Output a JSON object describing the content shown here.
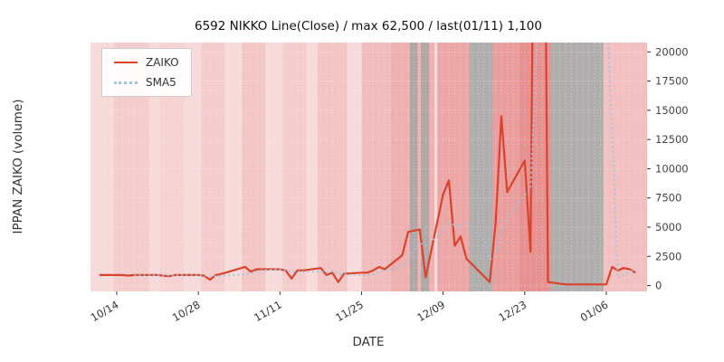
{
  "title": "6592 NIKKO Line(Close) / max 62,500 / last(01/11) 1,100",
  "xlabel": "DATE",
  "ylabel": "IPPAN ZAIKO (volume)",
  "legend": {
    "zaiko": "ZAIKO",
    "sma5": "SMA5"
  },
  "colors": {
    "zaiko_line": "#d9432d",
    "sma5_line": "#9fc5de",
    "plot_background": "#f7dada",
    "halt_band": "#a6a6a6",
    "gridline": "#ffffff",
    "tick_text": "#444444",
    "axis_text": "#333333"
  },
  "chart_data": {
    "type": "line",
    "title": "6592 NIKKO Line(Close) / max 62,500 / last(01/11) 1,100",
    "xlabel": "DATE",
    "ylabel": "IPPAN ZAIKO (volume)",
    "legend_position": "upper left",
    "grid": true,
    "xlim": [
      -1.5,
      94
    ],
    "ylim": [
      -500,
      20800
    ],
    "yticks": [
      0,
      2500,
      5000,
      7500,
      10000,
      12500,
      15000,
      17500,
      20000
    ],
    "xticks": [
      {
        "day": 3,
        "label": "10/14"
      },
      {
        "day": 17,
        "label": "10/28"
      },
      {
        "day": 31,
        "label": "11/11"
      },
      {
        "day": 45,
        "label": "11/25"
      },
      {
        "day": 59,
        "label": "12/09"
      },
      {
        "day": 73,
        "label": "12/23"
      },
      {
        "day": 87,
        "label": "01/06"
      }
    ],
    "max_value": 62500,
    "last_value": 1100,
    "last_date": "01/11",
    "series": [
      {
        "name": "ZAIKO",
        "style": "solid",
        "points": [
          [
            "10/11",
            0,
            900
          ],
          [
            "10/14",
            3,
            900
          ],
          [
            "10/15",
            4,
            900
          ],
          [
            "10/16",
            5,
            850
          ],
          [
            "10/17",
            6,
            900
          ],
          [
            "10/18",
            7,
            900
          ],
          [
            "10/21",
            10,
            900
          ],
          [
            "10/22",
            11,
            850
          ],
          [
            "10/23",
            12,
            800
          ],
          [
            "10/24",
            13,
            900
          ],
          [
            "10/25",
            14,
            900
          ],
          [
            "10/28",
            17,
            900
          ],
          [
            "10/29",
            18,
            850
          ],
          [
            "10/30",
            19,
            500
          ],
          [
            "10/31",
            20,
            900
          ],
          [
            "11/01",
            21,
            1000
          ],
          [
            "11/05",
            25,
            1600
          ],
          [
            "11/06",
            26,
            1200
          ],
          [
            "11/07",
            27,
            1400
          ],
          [
            "11/08",
            28,
            1400
          ],
          [
            "11/11",
            31,
            1400
          ],
          [
            "11/12",
            32,
            1300
          ],
          [
            "11/13",
            33,
            600
          ],
          [
            "11/14",
            34,
            1300
          ],
          [
            "11/15",
            35,
            1300
          ],
          [
            "11/18",
            38,
            1500
          ],
          [
            "11/19",
            39,
            900
          ],
          [
            "11/20",
            40,
            1100
          ],
          [
            "11/21",
            41,
            300
          ],
          [
            "11/22",
            42,
            1000
          ],
          [
            "11/25",
            45,
            1100
          ],
          [
            "11/26",
            46,
            1100
          ],
          [
            "11/27",
            47,
            1300
          ],
          [
            "11/28",
            48,
            1600
          ],
          [
            "11/29",
            49,
            1400
          ],
          [
            "12/02",
            52,
            2600
          ],
          [
            "12/03",
            53,
            4600
          ],
          [
            "12/04",
            54,
            4700
          ],
          [
            "12/05",
            55,
            4800
          ],
          [
            "12/06",
            56,
            700
          ],
          [
            "12/09",
            59,
            7800
          ],
          [
            "12/10",
            60,
            9000
          ],
          [
            "12/11",
            61,
            3400
          ],
          [
            "12/12",
            62,
            4200
          ],
          [
            "12/13",
            63,
            2300
          ],
          [
            "12/16",
            66,
            800
          ],
          [
            "12/17",
            67,
            300
          ],
          [
            "12/18",
            68,
            5300
          ],
          [
            "12/19",
            69,
            14500
          ],
          [
            "12/20",
            70,
            8000
          ],
          [
            "12/23",
            73,
            10700
          ],
          [
            "12/24",
            74,
            2900
          ],
          [
            "12/25",
            75,
            62500
          ],
          [
            "12/26",
            76,
            62500
          ],
          [
            "12/27",
            77,
            300
          ],
          [
            "12/30",
            80,
            100
          ],
          [
            "01/06",
            87,
            100
          ],
          [
            "01/07",
            88,
            1600
          ],
          [
            "01/08",
            89,
            1300
          ],
          [
            "01/09",
            90,
            1500
          ],
          [
            "01/10",
            91,
            1400
          ],
          [
            "01/11",
            92,
            1100
          ]
        ]
      },
      {
        "name": "SMA5",
        "style": "dotted",
        "derived": "5-point moving average of ZAIKO"
      }
    ],
    "bands": [
      {
        "x0": -1.5,
        "x1": 94,
        "color": "#f7dada"
      },
      {
        "x0": 2.5,
        "x1": 8.5,
        "color": "#f5cccc"
      },
      {
        "x0": 10.5,
        "x1": 14.5,
        "color": "#f6d2d2"
      },
      {
        "x0": 17.5,
        "x1": 21.5,
        "color": "#f5cccc"
      },
      {
        "x0": 24.5,
        "x1": 28.5,
        "color": "#f3c6c6"
      },
      {
        "x0": 31.5,
        "x1": 35.5,
        "color": "#f5cccc"
      },
      {
        "x0": 37.5,
        "x1": 42.5,
        "color": "#f3c4c4"
      },
      {
        "x0": 45.0,
        "x1": 50.0,
        "color": "#f1bcbc"
      },
      {
        "x0": 50.0,
        "x1": 57.5,
        "color": "#eeafaf"
      },
      {
        "x0": 58.0,
        "x1": 63.5,
        "color": "#eca6a6"
      },
      {
        "x0": 67.5,
        "x1": 72.0,
        "color": "#ea9d9d"
      },
      {
        "x0": 72.0,
        "x1": 77.5,
        "color": "#e79191"
      },
      {
        "x0": 86.5,
        "x1": 94,
        "color": "#f2c0c0"
      }
    ],
    "gray_bands": [
      {
        "x0": 53.3,
        "x1": 54.6
      },
      {
        "x0": 55.2,
        "x1": 56.6
      },
      {
        "x0": 63.5,
        "x1": 67.5
      },
      {
        "x0": 77.5,
        "x1": 86.5
      }
    ]
  }
}
